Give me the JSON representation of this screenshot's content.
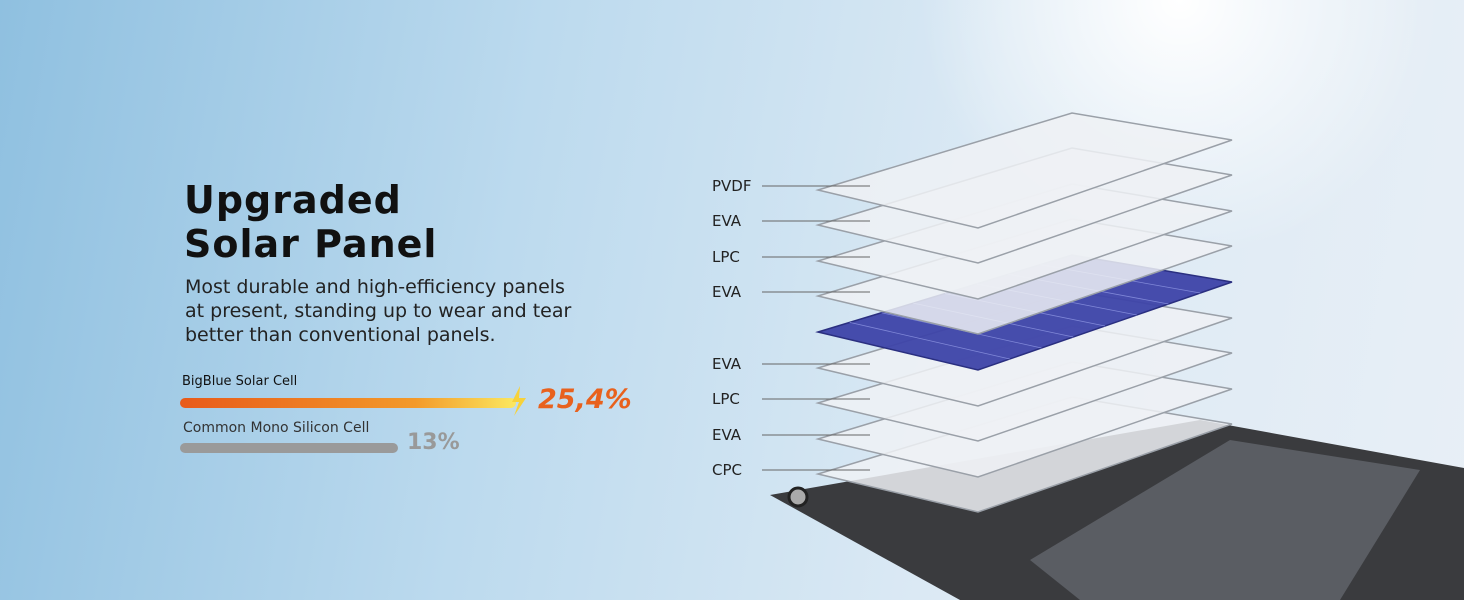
{
  "title_lines": [
    "Upgraded",
    "Solar Panel"
  ],
  "description_lines": [
    "Most durable and high-efficiency panels",
    "at present, standing up to wear and tear",
    "better than conventional panels."
  ],
  "comparison": [
    {
      "label": "BigBlue Solar Cell",
      "value_label": "25,4%"
    },
    {
      "label": "Common Mono Silicon Cell",
      "value_label": "13%"
    }
  ],
  "layers": [
    "PVDF",
    "EVA",
    "LPC",
    "EVA",
    "EVA",
    "LPC",
    "EVA",
    "CPC"
  ]
}
